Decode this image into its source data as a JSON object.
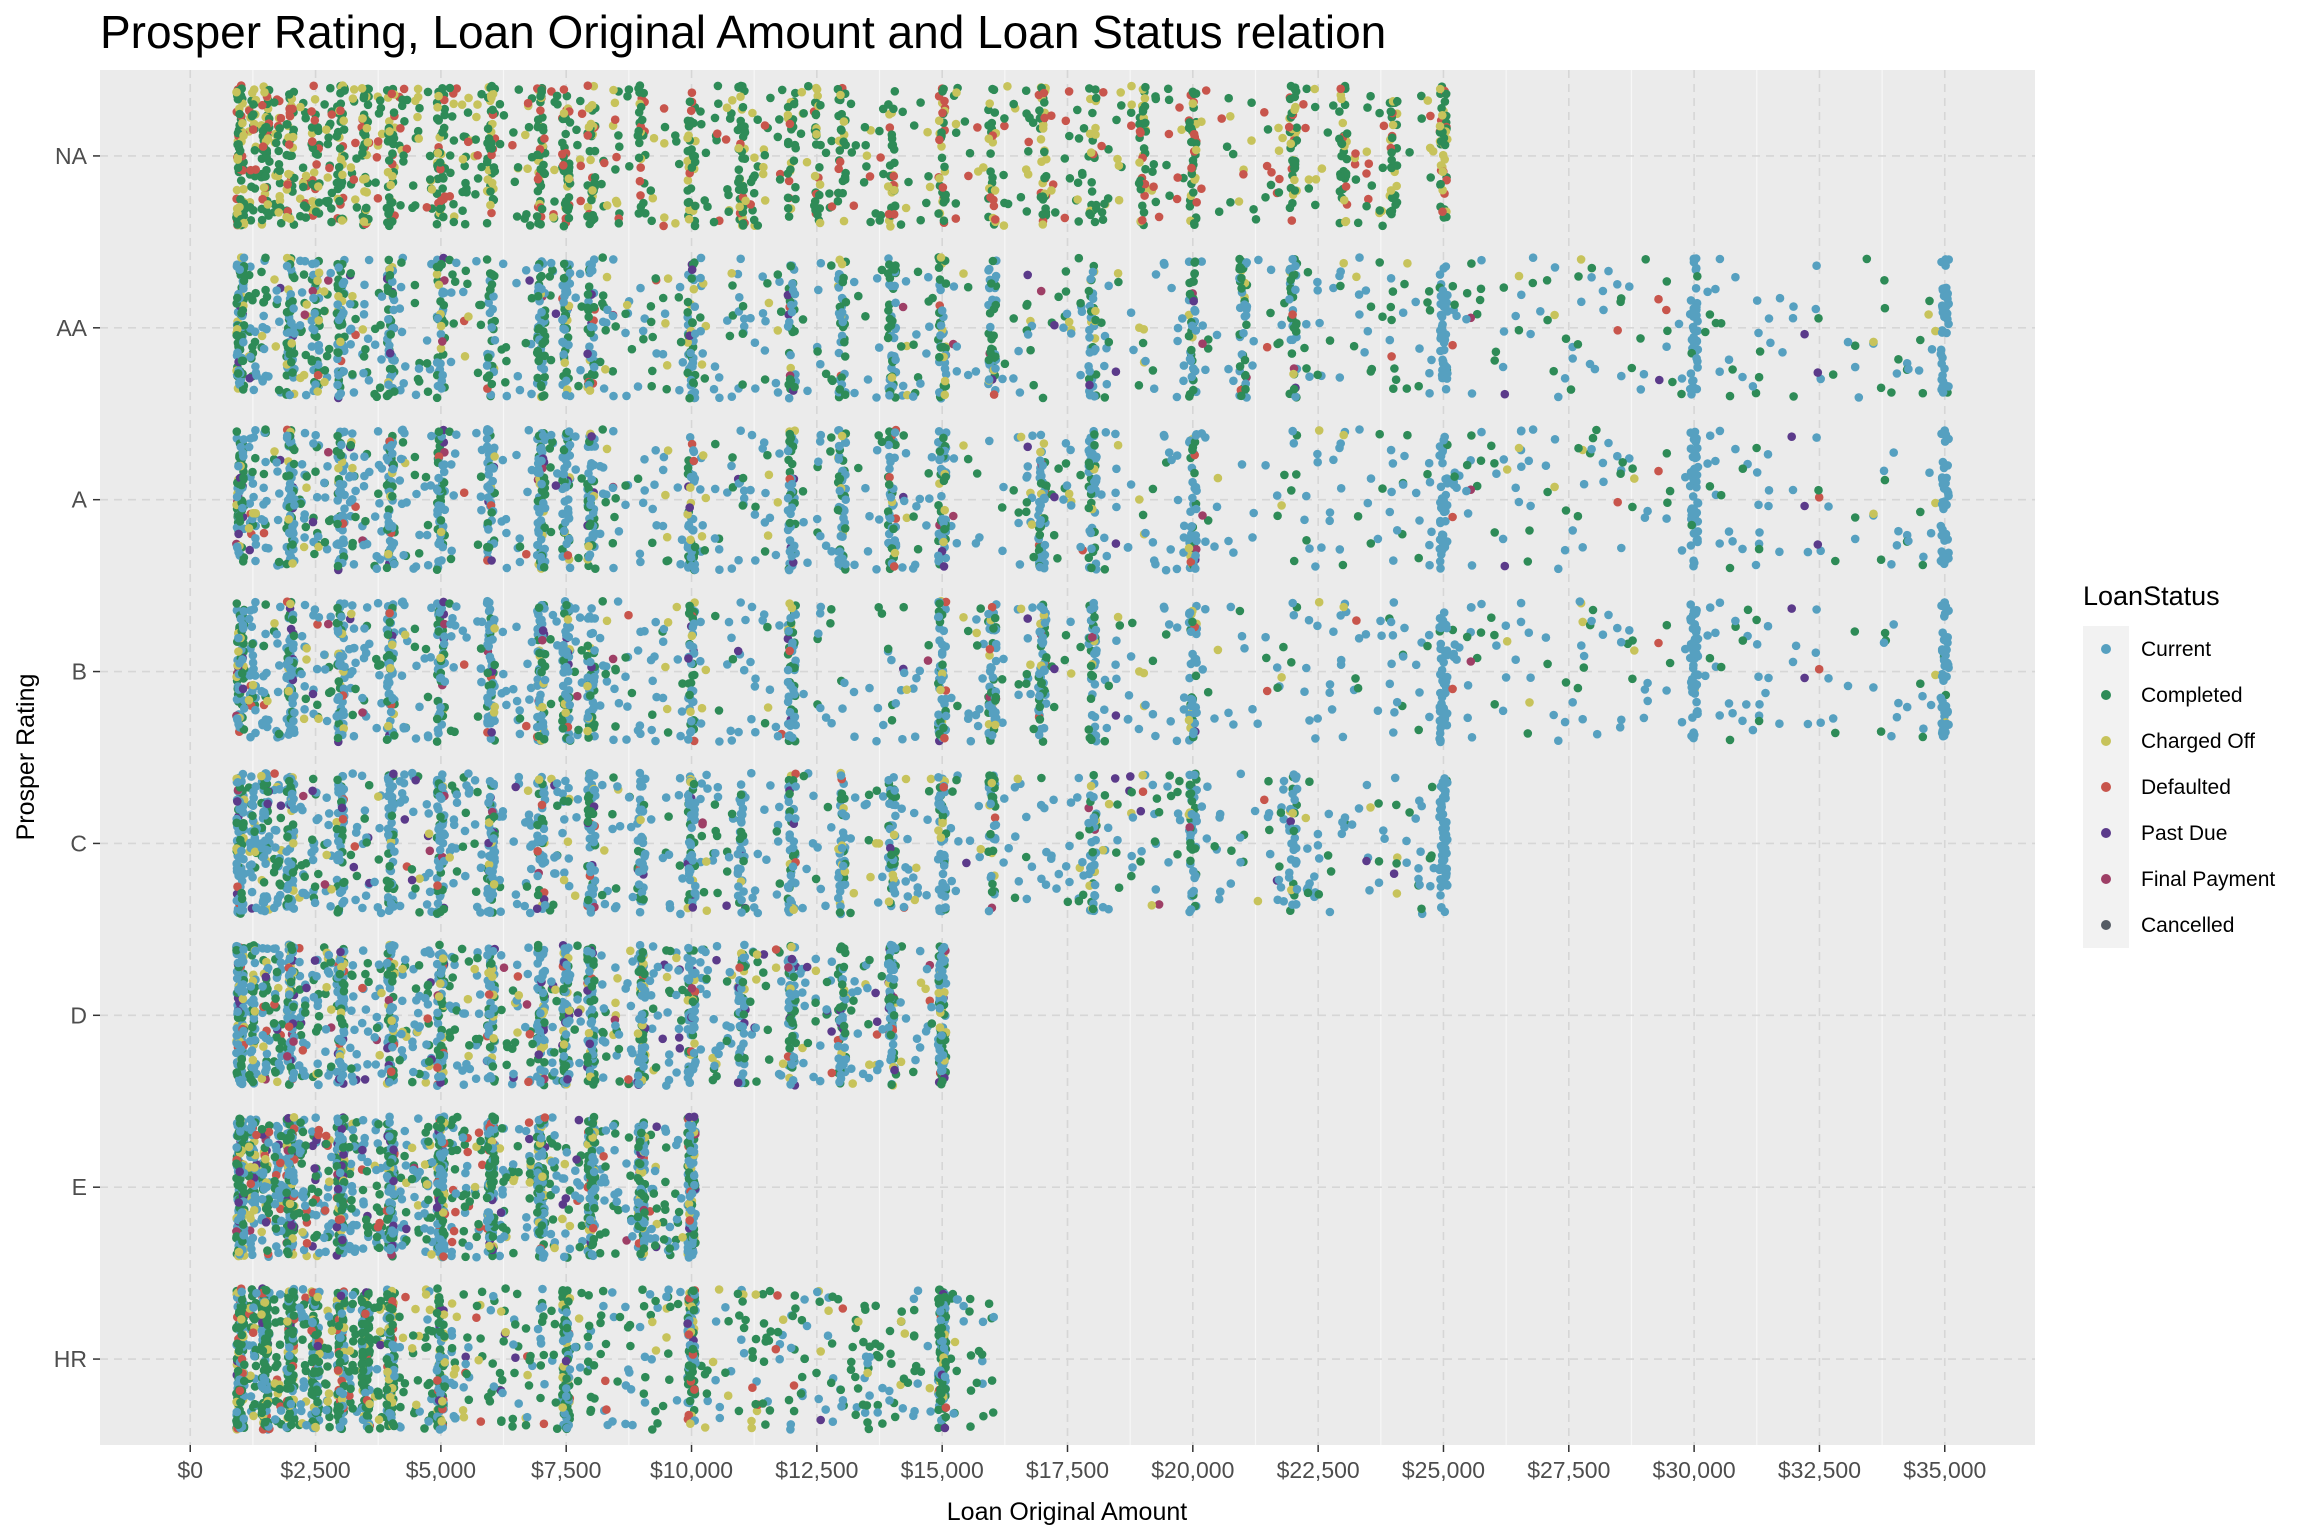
{
  "chart_data": {
    "type": "scatter",
    "title": "Prosper Rating, Loan Original Amount and Loan Status relation",
    "xlabel": "Loan Original Amount",
    "ylabel": "Prosper Rating",
    "xlim": [
      -1800,
      36800
    ],
    "x_ticks": [
      0,
      2500,
      5000,
      7500,
      10000,
      12500,
      15000,
      17500,
      20000,
      22500,
      25000,
      27500,
      30000,
      32500,
      35000
    ],
    "x_tick_labels": [
      "$0",
      "$2,500",
      "$5,000",
      "$7,500",
      "$10,000",
      "$12,500",
      "$15,000",
      "$17,500",
      "$20,000",
      "$22,500",
      "$25,000",
      "$27,500",
      "$30,000",
      "$32,500",
      "$35,000"
    ],
    "categories": [
      "NA",
      "AA",
      "A",
      "B",
      "C",
      "D",
      "E",
      "HR"
    ],
    "grid": true,
    "jitter": true,
    "background": "#ebebeb",
    "legend": {
      "title": "LoanStatus",
      "position": "right",
      "entries": [
        {
          "label": "Current",
          "color": "#56a0c0"
        },
        {
          "label": "Completed",
          "color": "#2e8b57"
        },
        {
          "label": "Charged Off",
          "color": "#c7c35b"
        },
        {
          "label": "Defaulted",
          "color": "#c8554c"
        },
        {
          "label": "Past Due",
          "color": "#5b3a8a"
        },
        {
          "label": "Final Payment",
          "color": "#9e3f66"
        },
        {
          "label": "Cancelled",
          "color": "#555c64"
        }
      ]
    },
    "series": [
      {
        "category": "NA",
        "min": 1000,
        "max": 25000,
        "mix": [
          0,
          0.58,
          0.26,
          0.16,
          0,
          0,
          0
        ],
        "common": [
          1000,
          1500,
          2000,
          2500,
          3000,
          3500,
          4000,
          5000,
          6000,
          7000,
          7500,
          8000,
          9000,
          10000,
          11000,
          12000,
          12500,
          13000,
          14000,
          15000,
          16000,
          17000,
          18000,
          19000,
          20000,
          22000,
          23000,
          24000,
          25000
        ]
      },
      {
        "category": "AA",
        "min": 1000,
        "max": 35000,
        "mix": [
          0.45,
          0.42,
          0.08,
          0.02,
          0.02,
          0.01,
          0
        ],
        "common": [
          1000,
          2000,
          2500,
          3000,
          4000,
          5000,
          6000,
          7000,
          7500,
          8000,
          10000,
          12000,
          13000,
          14000,
          15000,
          16000,
          18000,
          20000,
          21000,
          22000,
          25000,
          30000,
          35000
        ]
      },
      {
        "category": "A",
        "min": 1000,
        "max": 35000,
        "mix": [
          0.6,
          0.28,
          0.06,
          0.02,
          0.03,
          0.01,
          0
        ],
        "common": [
          1000,
          2000,
          3000,
          4000,
          5000,
          6000,
          7000,
          7500,
          8000,
          10000,
          12000,
          13000,
          14000,
          15000,
          17000,
          18000,
          20000,
          25000,
          30000,
          35000
        ]
      },
      {
        "category": "B",
        "min": 1000,
        "max": 35000,
        "mix": [
          0.62,
          0.25,
          0.07,
          0.02,
          0.03,
          0.01,
          0
        ],
        "common": [
          1000,
          2000,
          3000,
          4000,
          5000,
          6000,
          7000,
          7500,
          8000,
          10000,
          12000,
          15000,
          16000,
          17000,
          18000,
          20000,
          25000,
          30000,
          35000
        ]
      },
      {
        "category": "C",
        "min": 1000,
        "max": 25000,
        "mix": [
          0.62,
          0.24,
          0.07,
          0.02,
          0.04,
          0.01,
          0
        ],
        "common": [
          1000,
          1500,
          2000,
          3000,
          4000,
          5000,
          6000,
          7000,
          8000,
          9000,
          10000,
          11000,
          12000,
          13000,
          14000,
          15000,
          16000,
          18000,
          20000,
          22000,
          25000
        ]
      },
      {
        "category": "D",
        "min": 1000,
        "max": 15000,
        "mix": [
          0.48,
          0.32,
          0.1,
          0.04,
          0.05,
          0.01,
          0
        ],
        "common": [
          1000,
          2000,
          3000,
          4000,
          5000,
          6000,
          7000,
          7500,
          8000,
          9000,
          10000,
          11000,
          12000,
          13000,
          14000,
          15000
        ]
      },
      {
        "category": "E",
        "min": 1000,
        "max": 10000,
        "mix": [
          0.45,
          0.35,
          0.1,
          0.05,
          0.04,
          0.01,
          0
        ],
        "common": [
          1000,
          2000,
          3000,
          4000,
          5000,
          6000,
          7000,
          8000,
          9000,
          10000
        ]
      },
      {
        "category": "HR",
        "min": 1000,
        "max": 16000,
        "mix": [
          0.28,
          0.52,
          0.13,
          0.05,
          0.02,
          0,
          0
        ],
        "common": [
          1000,
          1500,
          2000,
          2500,
          3000,
          3500,
          4000,
          5000,
          7500,
          10000,
          15000
        ]
      }
    ]
  }
}
